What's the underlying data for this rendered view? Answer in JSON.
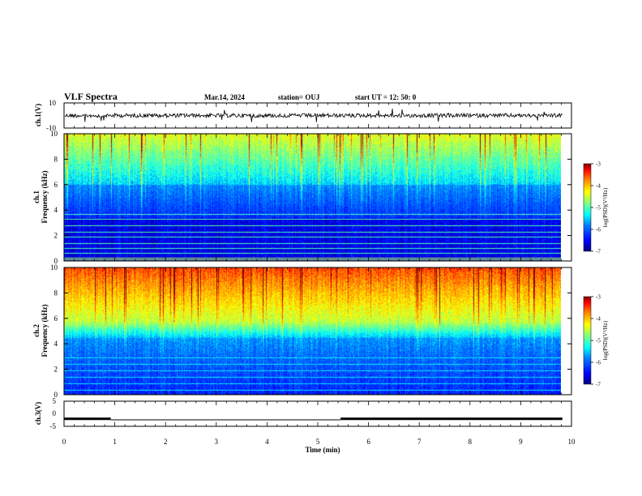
{
  "header": {
    "title": "VLF Spectra",
    "date": "Mar.14, 2024",
    "station": "station= OUJ",
    "start": "start  UT =   12: 50: 0"
  },
  "colors": {
    "background": "#ffffff",
    "axes": "#000000",
    "colormap": [
      "#000080",
      "#0000ff",
      "#0080ff",
      "#00ffff",
      "#80ff80",
      "#ffff00",
      "#ff8000",
      "#ff0000",
      "#800000"
    ]
  },
  "chart_data": [
    {
      "type": "line",
      "name": "ch1-waveform",
      "ylabel": "ch.1(V)",
      "ylim": [
        -10,
        10
      ],
      "y_ticks": [
        "10",
        "-10"
      ],
      "xlim": [
        0,
        10
      ],
      "trace_level": 0
    },
    {
      "type": "heatmap",
      "name": "ch1-spectrogram",
      "ylabel_channel": "ch.1",
      "ylabel": "Frequency (kHz)",
      "ylim": [
        0,
        10
      ],
      "y_ticks": [
        "0",
        "2",
        "4",
        "6",
        "8",
        "10"
      ],
      "xlim": [
        0,
        10
      ],
      "data_end_min": 9.82,
      "colorbar": {
        "label": "log(PSD)(V²/Hz)",
        "range": [
          -7,
          -3
        ],
        "ticks": [
          "-3",
          "-4",
          "-5",
          "-6",
          "-7"
        ]
      }
    },
    {
      "type": "heatmap",
      "name": "ch2-spectrogram",
      "ylabel_channel": "ch.2",
      "ylabel": "Frequency (kHz)",
      "ylim": [
        0,
        10
      ],
      "y_ticks": [
        "0",
        "2",
        "4",
        "6",
        "8",
        "10"
      ],
      "xlim": [
        0,
        10
      ],
      "data_end_min": 9.82,
      "colorbar": {
        "label": "log(PSD)(V²/Hz)",
        "range": [
          -7,
          -3
        ],
        "ticks": [
          "-3",
          "-4",
          "-5",
          "-6",
          "-7"
        ]
      }
    },
    {
      "type": "line",
      "name": "ch3-signal",
      "ylabel": "ch.3(V)",
      "ylim": [
        -5,
        5
      ],
      "y_ticks": [
        "5",
        "0",
        "-5"
      ],
      "xlim": [
        0,
        10
      ],
      "segments": [
        {
          "x": [
            0,
            0.92
          ],
          "y": [
            -2,
            -2
          ]
        },
        {
          "x": [
            0.92,
            5.45
          ],
          "y": [
            -2.4,
            -2.4
          ]
        },
        {
          "x": [
            5.45,
            9.82
          ],
          "y": [
            -2,
            -2
          ]
        }
      ]
    }
  ],
  "x_axis": {
    "label": "Time  (min)",
    "ticks": [
      "0",
      "1",
      "2",
      "3",
      "4",
      "5",
      "6",
      "7",
      "8",
      "9",
      "10"
    ]
  }
}
